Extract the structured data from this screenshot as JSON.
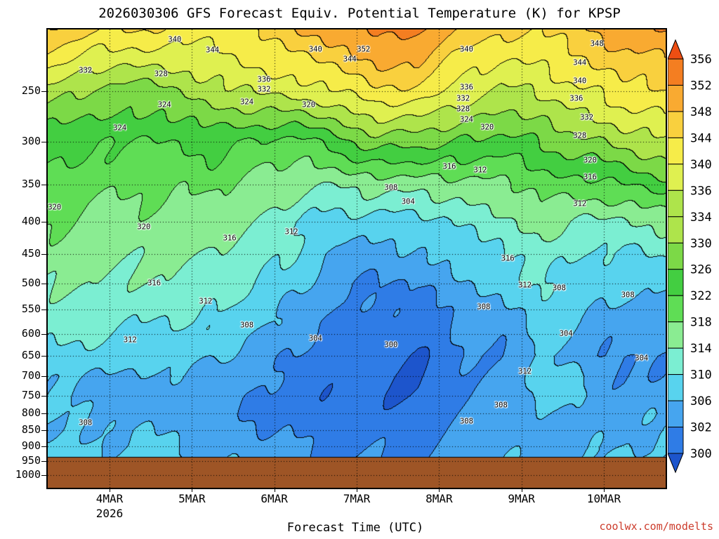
{
  "title": "2026030306 GFS Forecast Equiv. Potential Temperature (K) for KPSP",
  "x_axis_label": "Forecast Time (UTC)",
  "watermark": "coolwx.com/modelts",
  "axes": {
    "y_tick_labels": [
      "250",
      "300",
      "350",
      "400",
      "450",
      "500",
      "550",
      "600",
      "650",
      "700",
      "750",
      "800",
      "850",
      "900",
      "950",
      "1000"
    ],
    "x_ticks": [
      {
        "label": "4MAR",
        "hour": 18
      },
      {
        "label": "5MAR",
        "hour": 42
      },
      {
        "label": "6MAR",
        "hour": 66
      },
      {
        "label": "7MAR",
        "hour": 90
      },
      {
        "label": "8MAR",
        "hour": 114
      },
      {
        "label": "9MAR",
        "hour": 138
      },
      {
        "label": "10MAR",
        "hour": 162
      }
    ],
    "year_label": "2026",
    "pressure_top_hpa": 200,
    "pressure_bottom_hpa": 1046,
    "hours_span": 180,
    "underground_top_pressure_hpa": 938,
    "underground_color": "#9e5526"
  },
  "colorbar": {
    "units": "K",
    "labels": [
      "356",
      "352",
      "348",
      "344",
      "340",
      "336",
      "334",
      "330",
      "326",
      "322",
      "318",
      "314",
      "310",
      "306",
      "302",
      "300"
    ],
    "band_colors": [
      "#1d55cc",
      "#2f7ce6",
      "#46a5ef",
      "#58d3ee",
      "#7beed2",
      "#8aec92",
      "#5fdd55",
      "#43ce41",
      "#7cd947",
      "#aee44b",
      "#dff050",
      "#f6ec49",
      "#f9d03e",
      "#f9aa31",
      "#f47e21",
      "#ee4e13"
    ]
  },
  "chart_data": {
    "type": "heatmap",
    "units": "K",
    "contour_interval": 4,
    "x_unit": "forecast hour from 2026030306",
    "x_hours": [
      0,
      12,
      24,
      36,
      48,
      60,
      72,
      84,
      96,
      108,
      120,
      132,
      144,
      156,
      168,
      180
    ],
    "pressure_levels": [
      200,
      250,
      300,
      350,
      400,
      450,
      500,
      550,
      600,
      650,
      700,
      750,
      800,
      850,
      900,
      950
    ],
    "values_by_time": [
      [
        348,
        334,
        326,
        322,
        320,
        318,
        316,
        314,
        313,
        311,
        309,
        308,
        308,
        308,
        309,
        310
      ],
      [
        345,
        331,
        324,
        321,
        319,
        317,
        316,
        314,
        312,
        310,
        308,
        307,
        307,
        308,
        309,
        310
      ],
      [
        344,
        330,
        325,
        321,
        319,
        317,
        316,
        314,
        312,
        310,
        308,
        307,
        307,
        308,
        308,
        309
      ],
      [
        343,
        332,
        324,
        320,
        318,
        316,
        315,
        313,
        311,
        309,
        307,
        306,
        306,
        307,
        308,
        309
      ],
      [
        342,
        334,
        325,
        321,
        318,
        316,
        314,
        312,
        310,
        308,
        306,
        305,
        305,
        306,
        307,
        308
      ],
      [
        344,
        336,
        323,
        319,
        316,
        314,
        312,
        310,
        308,
        306,
        305,
        304,
        304,
        305,
        306,
        307
      ],
      [
        347,
        337,
        323,
        317,
        313,
        311,
        309,
        307,
        305,
        304,
        303,
        302,
        302,
        303,
        304,
        305
      ],
      [
        350,
        340,
        326,
        316,
        310,
        307,
        305,
        304,
        303,
        302,
        301,
        301,
        301,
        302,
        303,
        304
      ],
      [
        354,
        344,
        330,
        318,
        310,
        306,
        304,
        303,
        302,
        301,
        300,
        300,
        301,
        302,
        303,
        304
      ],
      [
        353,
        342,
        330,
        318,
        311,
        307,
        304,
        302,
        301,
        300,
        300,
        300,
        301,
        302,
        303,
        304
      ],
      [
        348,
        338,
        327,
        318,
        313,
        310,
        308,
        306,
        304,
        303,
        303,
        303,
        304,
        305,
        306,
        307
      ],
      [
        344,
        336,
        327,
        319,
        314,
        311,
        309,
        307,
        305,
        304,
        305,
        306,
        306,
        306,
        307,
        307
      ],
      [
        344,
        336,
        328,
        322,
        318,
        315,
        313,
        311,
        310,
        309,
        311,
        310,
        308,
        307,
        307,
        308
      ],
      [
        348,
        340,
        331,
        323,
        316,
        312,
        310,
        308,
        307,
        306,
        308,
        308,
        307,
        307,
        307,
        308
      ],
      [
        350,
        342,
        334,
        324,
        315,
        311,
        309,
        307,
        305,
        303,
        304,
        305,
        306,
        307,
        307,
        308
      ],
      [
        352,
        344,
        336,
        326,
        317,
        312,
        309,
        307,
        306,
        305,
        305,
        306,
        307,
        307,
        308,
        308
      ]
    ],
    "contour_labels_value_hour_hpa": [
      [
        340,
        37,
        208
      ],
      [
        344,
        48,
        216
      ],
      [
        340,
        78,
        215
      ],
      [
        352,
        92,
        215
      ],
      [
        344,
        88,
        223
      ],
      [
        332,
        11,
        232
      ],
      [
        328,
        33,
        235
      ],
      [
        336,
        63,
        240
      ],
      [
        332,
        63,
        249
      ],
      [
        340,
        122,
        215
      ],
      [
        348,
        160,
        211
      ],
      [
        344,
        155,
        226
      ],
      [
        336,
        122,
        247
      ],
      [
        340,
        155,
        241
      ],
      [
        332,
        121,
        257
      ],
      [
        336,
        154,
        257
      ],
      [
        324,
        58,
        260
      ],
      [
        320,
        76,
        263
      ],
      [
        328,
        121,
        267
      ],
      [
        332,
        157,
        275
      ],
      [
        324,
        122,
        277
      ],
      [
        324,
        34,
        263
      ],
      [
        324,
        21,
        286
      ],
      [
        320,
        128,
        285
      ],
      [
        328,
        155,
        294
      ],
      [
        320,
        158,
        321
      ],
      [
        316,
        158,
        341
      ],
      [
        316,
        117,
        329
      ],
      [
        312,
        126,
        333
      ],
      [
        320,
        2,
        381
      ],
      [
        308,
        100,
        355
      ],
      [
        304,
        105,
        373
      ],
      [
        312,
        155,
        376
      ],
      [
        320,
        28,
        409
      ],
      [
        316,
        53,
        425
      ],
      [
        312,
        71,
        416
      ],
      [
        316,
        134,
        458
      ],
      [
        316,
        31,
        500
      ],
      [
        312,
        139,
        504
      ],
      [
        308,
        149,
        510
      ],
      [
        308,
        169,
        523
      ],
      [
        312,
        46,
        534
      ],
      [
        308,
        58,
        583
      ],
      [
        304,
        78,
        612
      ],
      [
        300,
        100,
        625
      ],
      [
        312,
        24,
        614
      ],
      [
        308,
        127,
        545
      ],
      [
        304,
        151,
        601
      ],
      [
        304,
        173,
        657
      ],
      [
        312,
        139,
        689
      ],
      [
        308,
        132,
        777
      ],
      [
        308,
        11,
        829
      ],
      [
        308,
        122,
        825
      ]
    ]
  }
}
